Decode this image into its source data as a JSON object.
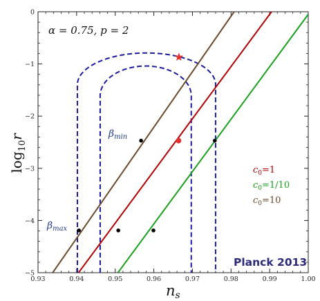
{
  "chart_data": {
    "type": "line",
    "xlabel_main": "n",
    "xlabel_sub": "s",
    "ylabel_main": "log",
    "ylabel_sub": "10",
    "ylabel_tail": "r",
    "xlim": [
      0.93,
      1.0
    ],
    "ylim": [
      -5,
      0
    ],
    "x_ticks": [
      {
        "value": 0.93,
        "label": "0.93"
      },
      {
        "value": 0.94,
        "label": "0.94"
      },
      {
        "value": 0.95,
        "label": "0.95"
      },
      {
        "value": 0.96,
        "label": "0.96"
      },
      {
        "value": 0.97,
        "label": "0.97"
      },
      {
        "value": 0.98,
        "label": "0.98"
      },
      {
        "value": 0.99,
        "label": "0.99"
      },
      {
        "value": 1.0,
        "label": "1.00"
      }
    ],
    "y_ticks": [
      {
        "value": 0,
        "label": "0"
      },
      {
        "value": -1,
        "label": "−1"
      },
      {
        "value": -2,
        "label": "−2"
      },
      {
        "value": -3,
        "label": "−3"
      },
      {
        "value": -4,
        "label": "−4"
      },
      {
        "value": -5,
        "label": "−5"
      }
    ],
    "parameters_label": "α = 0.75,  p = 2",
    "series": [
      {
        "name": "c0=10",
        "legend_main": "c",
        "legend_sub": "0",
        "legend_tail": "=10",
        "color": "#6b4a2b",
        "points": [
          [
            0.9338,
            -5.0
          ],
          [
            0.9808,
            0.0
          ]
        ],
        "dots": [
          [
            0.9406,
            -4.19
          ],
          [
            0.9567,
            -2.47
          ]
        ]
      },
      {
        "name": "c0=1",
        "legend_main": "c",
        "legend_sub": "0",
        "legend_tail": "=1",
        "color": "#b30000",
        "points": [
          [
            0.9405,
            -5.0
          ],
          [
            0.9905,
            0.0
          ]
        ],
        "dots": [
          [
            0.9508,
            -4.19
          ]
        ]
      },
      {
        "name": "c0=1/10",
        "legend_main": "c",
        "legend_sub": "0",
        "legend_tail": "=1/10",
        "color": "#1ca01c",
        "points": [
          [
            0.9507,
            -5.0
          ],
          [
            1.0,
            -0.05
          ]
        ],
        "dots": [
          [
            0.9599,
            -4.19
          ],
          [
            0.9758,
            -2.47
          ]
        ]
      }
    ],
    "beta_curves": [
      {
        "name": "beta-max",
        "label_main": "β",
        "label_sub": "max",
        "color": "#1a1aa0",
        "x_left": 0.9402,
        "x_right": 0.976,
        "y_top": -0.79
      },
      {
        "name": "beta-min",
        "label_main": "β",
        "label_sub": "min",
        "color": "#1a1aa0",
        "x_left": 0.9461,
        "x_right": 0.9697,
        "y_top": -1.04
      }
    ],
    "markers": [
      {
        "name": "star",
        "x": 0.9665,
        "y": -0.87,
        "color": "#e03030"
      },
      {
        "name": "planck-point",
        "x": 0.9664,
        "y": -2.47,
        "color": "#e03030"
      }
    ],
    "annotation": "Planck 2013"
  }
}
